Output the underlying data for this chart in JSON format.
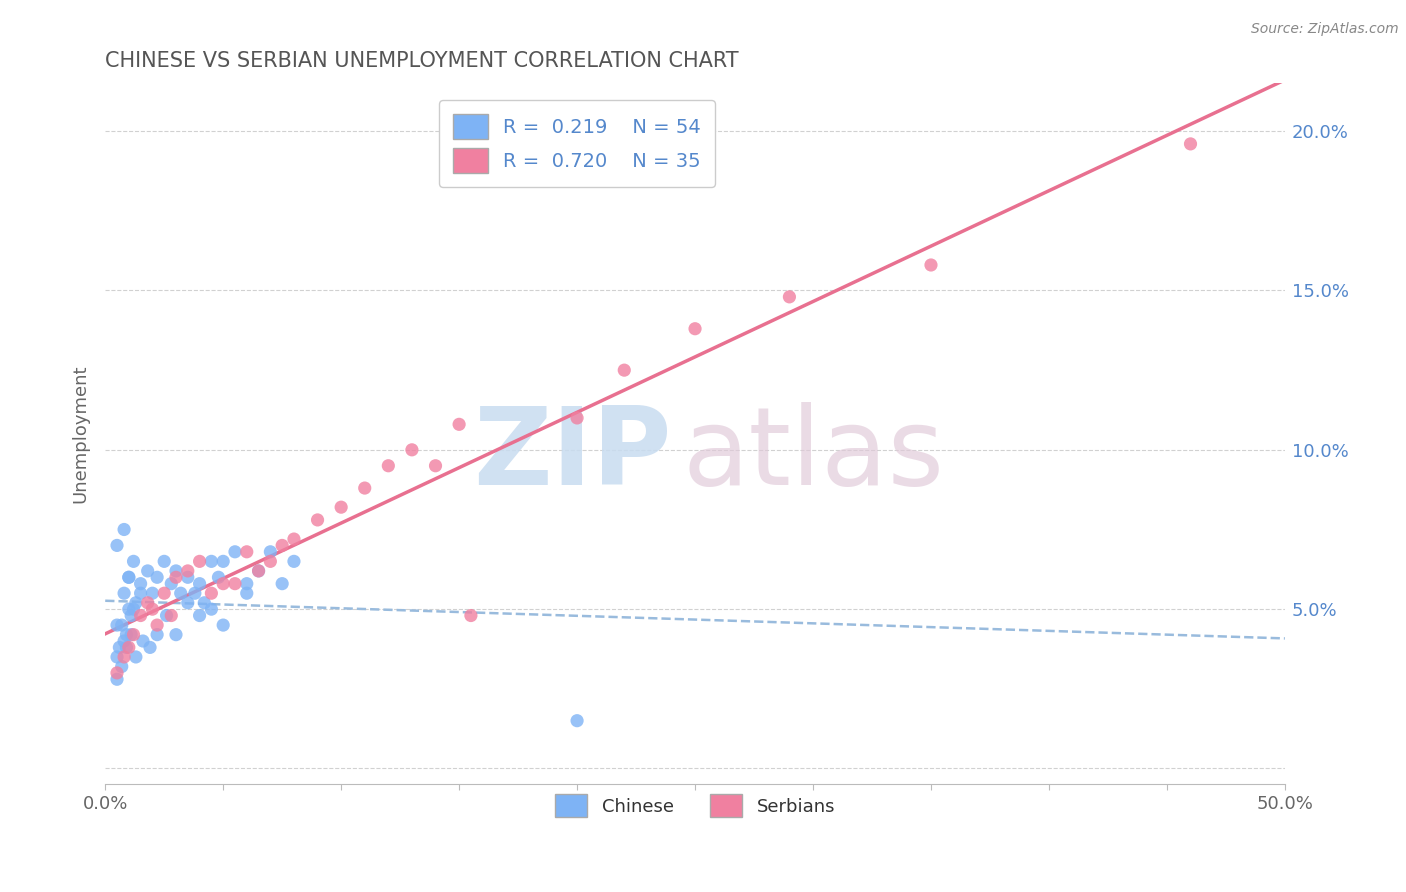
{
  "title": "CHINESE VS SERBIAN UNEMPLOYMENT CORRELATION CHART",
  "source": "Source: ZipAtlas.com",
  "ylabel": "Unemployment",
  "xlim": [
    0.0,
    0.5
  ],
  "ylim": [
    -0.005,
    0.215
  ],
  "xticks": [
    0.0,
    0.05,
    0.1,
    0.15,
    0.2,
    0.25,
    0.3,
    0.35,
    0.4,
    0.45,
    0.5
  ],
  "xtick_labels_show": [
    "0.0%",
    "",
    "",
    "",
    "",
    "",
    "",
    "",
    "",
    "",
    "50.0%"
  ],
  "yticks": [
    0.0,
    0.05,
    0.1,
    0.15,
    0.2
  ],
  "ytick_labels": [
    "",
    "5.0%",
    "10.0%",
    "15.0%",
    "20.0%"
  ],
  "chinese_color": "#7EB3F5",
  "serbian_color": "#F080A0",
  "trendline_chinese_color": "#99BBDD",
  "trendline_serbian_color": "#E87090",
  "legend_r_chinese": "R =  0.219",
  "legend_n_chinese": "N = 54",
  "legend_r_serbian": "R =  0.720",
  "legend_n_serbian": "N = 35",
  "chinese_x": [
    0.005,
    0.008,
    0.01,
    0.012,
    0.015,
    0.005,
    0.008,
    0.01,
    0.012,
    0.005,
    0.008,
    0.01,
    0.007,
    0.006,
    0.009,
    0.011,
    0.013,
    0.015,
    0.018,
    0.02,
    0.022,
    0.025,
    0.028,
    0.03,
    0.032,
    0.035,
    0.038,
    0.04,
    0.042,
    0.045,
    0.048,
    0.05,
    0.055,
    0.06,
    0.065,
    0.07,
    0.075,
    0.08,
    0.005,
    0.007,
    0.009,
    0.011,
    0.013,
    0.016,
    0.019,
    0.022,
    0.026,
    0.03,
    0.035,
    0.04,
    0.045,
    0.05,
    0.06,
    0.2
  ],
  "chinese_y": [
    0.07,
    0.075,
    0.06,
    0.05,
    0.055,
    0.045,
    0.04,
    0.06,
    0.065,
    0.035,
    0.055,
    0.05,
    0.045,
    0.038,
    0.042,
    0.048,
    0.052,
    0.058,
    0.062,
    0.055,
    0.06,
    0.065,
    0.058,
    0.062,
    0.055,
    0.06,
    0.055,
    0.058,
    0.052,
    0.065,
    0.06,
    0.065,
    0.068,
    0.058,
    0.062,
    0.068,
    0.058,
    0.065,
    0.028,
    0.032,
    0.038,
    0.042,
    0.035,
    0.04,
    0.038,
    0.042,
    0.048,
    0.042,
    0.052,
    0.048,
    0.05,
    0.045,
    0.055,
    0.015
  ],
  "serbian_x": [
    0.005,
    0.008,
    0.01,
    0.012,
    0.015,
    0.018,
    0.02,
    0.022,
    0.025,
    0.028,
    0.03,
    0.035,
    0.04,
    0.045,
    0.05,
    0.055,
    0.06,
    0.065,
    0.07,
    0.075,
    0.08,
    0.09,
    0.1,
    0.11,
    0.12,
    0.13,
    0.14,
    0.15,
    0.155,
    0.2,
    0.22,
    0.25,
    0.29,
    0.35,
    0.46
  ],
  "serbian_y": [
    0.03,
    0.035,
    0.038,
    0.042,
    0.048,
    0.052,
    0.05,
    0.045,
    0.055,
    0.048,
    0.06,
    0.062,
    0.065,
    0.055,
    0.058,
    0.058,
    0.068,
    0.062,
    0.065,
    0.07,
    0.072,
    0.078,
    0.082,
    0.088,
    0.095,
    0.1,
    0.095,
    0.108,
    0.048,
    0.11,
    0.125,
    0.138,
    0.148,
    0.158,
    0.196
  ]
}
